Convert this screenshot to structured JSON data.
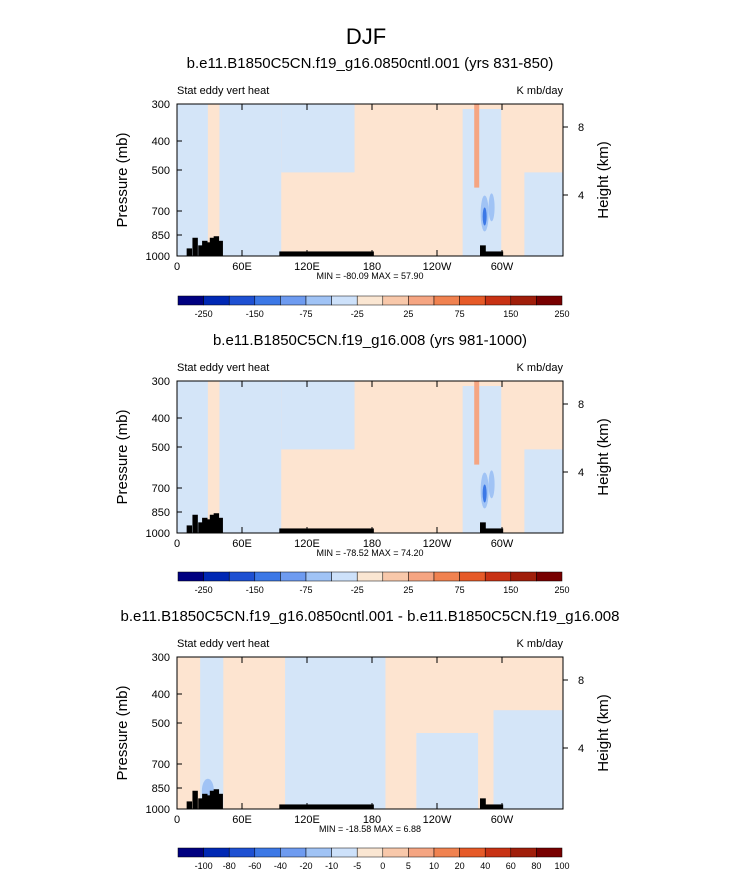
{
  "figure": {
    "title": "DJF"
  },
  "colors": {
    "palette": [
      "#000080",
      "#0028b4",
      "#1e50d2",
      "#3c78e6",
      "#6e9bf0",
      "#a0c3f5",
      "#cde1fa",
      "#fae6d2",
      "#f8c8aa",
      "#f5a582",
      "#f08250",
      "#e65a28",
      "#c83214",
      "#a01e0a",
      "#780000"
    ],
    "terrain": "#000000",
    "neutral_pos": "#fde4d0",
    "neutral_neg": "#d4e5f8"
  },
  "chart_data": [
    {
      "type": "heatmap",
      "title": "b.e11.B1850C5CN.f19_g16.0850cntl.001 (yrs 831-850)",
      "left_label": "Stat eddy vert heat",
      "right_label": "K mb/day",
      "ylabel": "Pressure (mb)",
      "ylabel_right": "Height (km)",
      "yticks": [
        "300",
        "400",
        "500",
        "700",
        "850",
        "1000"
      ],
      "yticks_right": [
        "8",
        "4"
      ],
      "xticks": [
        "0",
        "60E",
        "120E",
        "180",
        "120W",
        "60W"
      ],
      "min_max_text": "MIN = -80.09  MAX = 57.90",
      "colorbar_labels": [
        "-250",
        "-150",
        "-75",
        "-25",
        "25",
        "75",
        "150",
        "250"
      ]
    },
    {
      "type": "heatmap",
      "title": "b.e11.B1850C5CN.f19_g16.008 (yrs 981-1000)",
      "left_label": "Stat eddy vert heat",
      "right_label": "K mb/day",
      "ylabel": "Pressure (mb)",
      "ylabel_right": "Height (km)",
      "yticks": [
        "300",
        "400",
        "500",
        "700",
        "850",
        "1000"
      ],
      "yticks_right": [
        "8",
        "4"
      ],
      "xticks": [
        "0",
        "60E",
        "120E",
        "180",
        "120W",
        "60W"
      ],
      "min_max_text": "MIN = -78.52  MAX = 74.20",
      "colorbar_labels": [
        "-250",
        "-150",
        "-75",
        "-25",
        "25",
        "75",
        "150",
        "250"
      ]
    },
    {
      "type": "heatmap",
      "title": "b.e11.B1850C5CN.f19_g16.0850cntl.001 - b.e11.B1850C5CN.f19_g16.008",
      "left_label": "Stat eddy vert heat",
      "right_label": "K mb/day",
      "ylabel": "Pressure (mb)",
      "ylabel_right": "Height (km)",
      "yticks": [
        "300",
        "400",
        "500",
        "700",
        "850",
        "1000"
      ],
      "yticks_right": [
        "8",
        "4"
      ],
      "xticks": [
        "0",
        "60E",
        "120E",
        "180",
        "120W",
        "60W"
      ],
      "min_max_text": "MIN = -18.58  MAX = 6.88",
      "colorbar_labels": [
        "-100",
        "-80",
        "-60",
        "-40",
        "-20",
        "-10",
        "-5",
        "0",
        "5",
        "10",
        "20",
        "40",
        "60",
        "80",
        "100"
      ]
    }
  ]
}
